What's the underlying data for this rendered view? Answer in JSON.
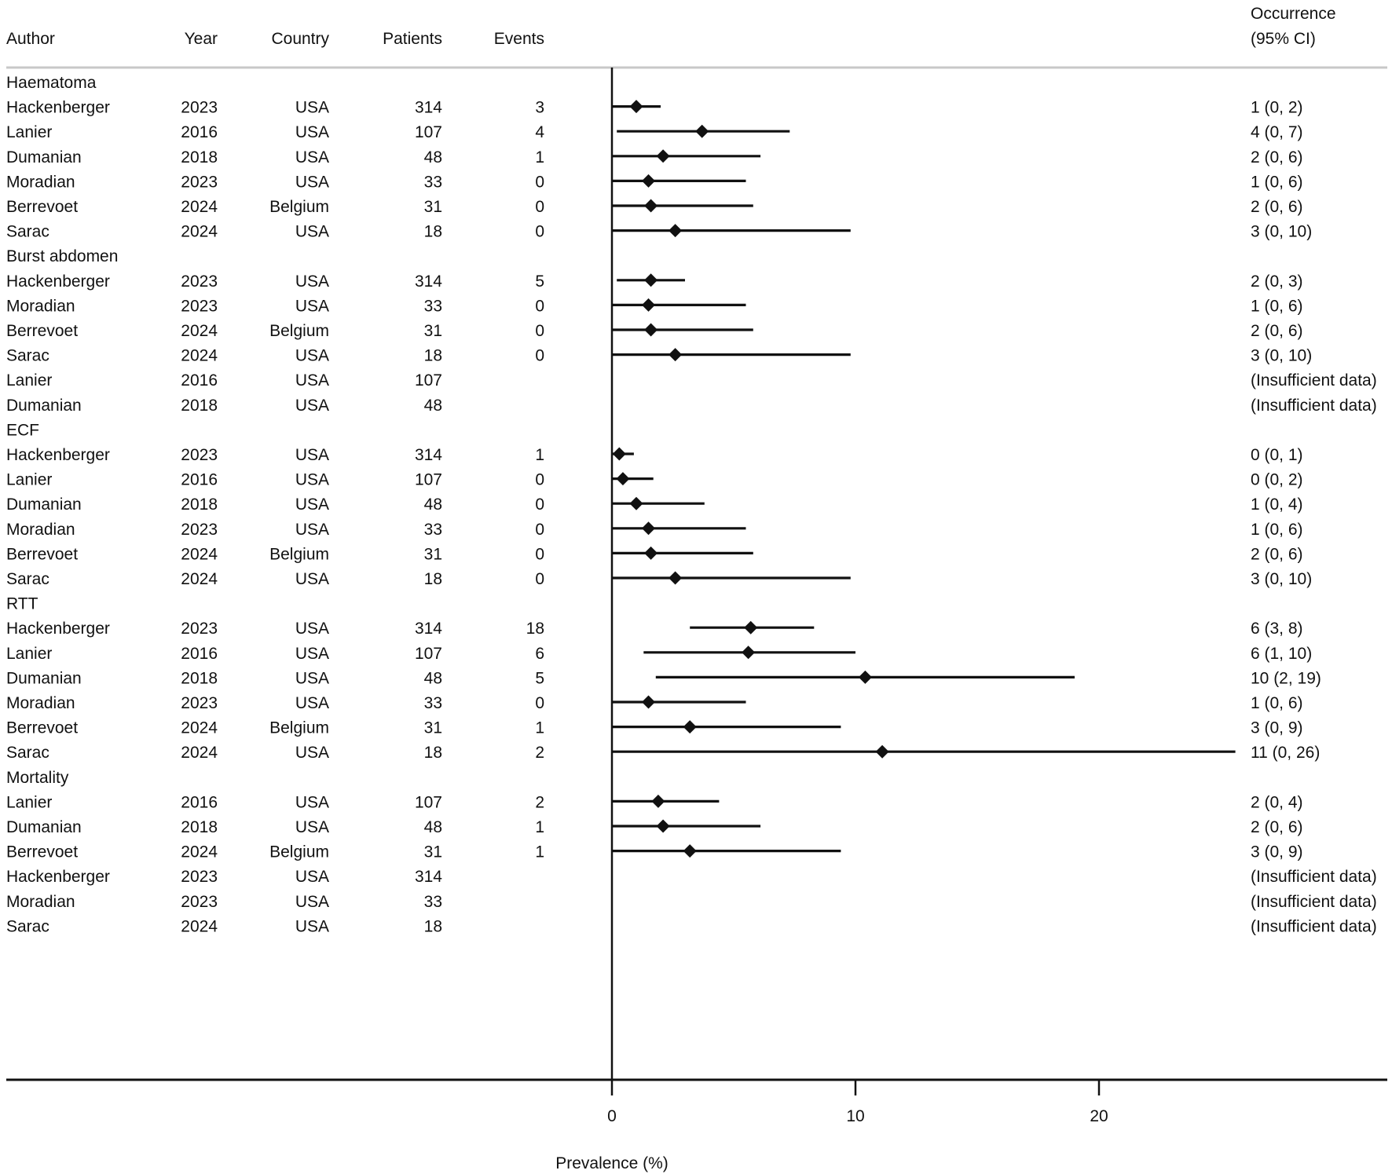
{
  "chart_data": {
    "type": "forest",
    "columns": {
      "author": "Author",
      "year": "Year",
      "country": "Country",
      "patients": "Patients",
      "events": "Events",
      "occurrence": [
        "Occurrence",
        "(95% CI)"
      ]
    },
    "xlabel": "Prevalence (%)",
    "xlim": [
      0,
      30
    ],
    "xticks": [
      0,
      10,
      20
    ],
    "groups": [
      {
        "title": "Haematoma",
        "rows": [
          {
            "author": "Hackenberger",
            "year": "2023",
            "country": "USA",
            "patients": "314",
            "events": "3",
            "est": 1.0,
            "lo": 0,
            "hi": 2.0,
            "label": "1 (0, 2)"
          },
          {
            "author": "Lanier",
            "year": "2016",
            "country": "USA",
            "patients": "107",
            "events": "4",
            "est": 3.7,
            "lo": 0.2,
            "hi": 7.3,
            "label": "4 (0, 7)"
          },
          {
            "author": "Dumanian",
            "year": "2018",
            "country": "USA",
            "patients": "48",
            "events": "1",
            "est": 2.1,
            "lo": 0,
            "hi": 6.1,
            "label": "2 (0, 6)"
          },
          {
            "author": "Moradian",
            "year": "2023",
            "country": "USA",
            "patients": "33",
            "events": "0",
            "est": 1.5,
            "lo": 0,
            "hi": 5.5,
            "label": "1 (0, 6)"
          },
          {
            "author": "Berrevoet",
            "year": "2024",
            "country": "Belgium",
            "patients": "31",
            "events": "0",
            "est": 1.6,
            "lo": 0,
            "hi": 5.8,
            "label": "2 (0, 6)"
          },
          {
            "author": "Sarac",
            "year": "2024",
            "country": "USA",
            "patients": "18",
            "events": "0",
            "est": 2.6,
            "lo": 0,
            "hi": 9.8,
            "label": "3 (0, 10)"
          }
        ]
      },
      {
        "title": "Burst abdomen",
        "rows": [
          {
            "author": "Hackenberger",
            "year": "2023",
            "country": "USA",
            "patients": "314",
            "events": "5",
            "est": 1.6,
            "lo": 0.2,
            "hi": 3.0,
            "label": "2 (0, 3)"
          },
          {
            "author": "Moradian",
            "year": "2023",
            "country": "USA",
            "patients": "33",
            "events": "0",
            "est": 1.5,
            "lo": 0,
            "hi": 5.5,
            "label": "1 (0, 6)"
          },
          {
            "author": "Berrevoet",
            "year": "2024",
            "country": "Belgium",
            "patients": "31",
            "events": "0",
            "est": 1.6,
            "lo": 0,
            "hi": 5.8,
            "label": "2 (0, 6)"
          },
          {
            "author": "Sarac",
            "year": "2024",
            "country": "USA",
            "patients": "18",
            "events": "0",
            "est": 2.6,
            "lo": 0,
            "hi": 9.8,
            "label": "3 (0, 10)"
          },
          {
            "author": "Lanier",
            "year": "2016",
            "country": "USA",
            "patients": "107",
            "events": "",
            "label": "(Insufficient data)"
          },
          {
            "author": "Dumanian",
            "year": "2018",
            "country": "USA",
            "patients": "48",
            "events": "",
            "label": "(Insufficient data)"
          }
        ]
      },
      {
        "title": "ECF",
        "rows": [
          {
            "author": "Hackenberger",
            "year": "2023",
            "country": "USA",
            "patients": "314",
            "events": "1",
            "est": 0.3,
            "lo": 0,
            "hi": 0.9,
            "label": "0 (0, 1)"
          },
          {
            "author": "Lanier",
            "year": "2016",
            "country": "USA",
            "patients": "107",
            "events": "0",
            "est": 0.45,
            "lo": 0,
            "hi": 1.7,
            "label": "0 (0, 2)"
          },
          {
            "author": "Dumanian",
            "year": "2018",
            "country": "USA",
            "patients": "48",
            "events": "0",
            "est": 1.0,
            "lo": 0,
            "hi": 3.8,
            "label": "1 (0, 4)"
          },
          {
            "author": "Moradian",
            "year": "2023",
            "country": "USA",
            "patients": "33",
            "events": "0",
            "est": 1.5,
            "lo": 0,
            "hi": 5.5,
            "label": "1 (0, 6)"
          },
          {
            "author": "Berrevoet",
            "year": "2024",
            "country": "Belgium",
            "patients": "31",
            "events": "0",
            "est": 1.6,
            "lo": 0,
            "hi": 5.8,
            "label": "2 (0, 6)"
          },
          {
            "author": "Sarac",
            "year": "2024",
            "country": "USA",
            "patients": "18",
            "events": "0",
            "est": 2.6,
            "lo": 0,
            "hi": 9.8,
            "label": "3 (0, 10)"
          }
        ]
      },
      {
        "title": "RTT",
        "rows": [
          {
            "author": "Hackenberger",
            "year": "2023",
            "country": "USA",
            "patients": "314",
            "events": "18",
            "est": 5.7,
            "lo": 3.2,
            "hi": 8.3,
            "label": "6 (3, 8)"
          },
          {
            "author": "Lanier",
            "year": "2016",
            "country": "USA",
            "patients": "107",
            "events": "6",
            "est": 5.6,
            "lo": 1.3,
            "hi": 10.0,
            "label": "6 (1, 10)"
          },
          {
            "author": "Dumanian",
            "year": "2018",
            "country": "USA",
            "patients": "48",
            "events": "5",
            "est": 10.4,
            "lo": 1.8,
            "hi": 19.0,
            "label": "10 (2, 19)"
          },
          {
            "author": "Moradian",
            "year": "2023",
            "country": "USA",
            "patients": "33",
            "events": "0",
            "est": 1.5,
            "lo": 0,
            "hi": 5.5,
            "label": "1 (0, 6)"
          },
          {
            "author": "Berrevoet",
            "year": "2024",
            "country": "Belgium",
            "patients": "31",
            "events": "1",
            "est": 3.2,
            "lo": 0,
            "hi": 9.4,
            "label": "3 (0, 9)"
          },
          {
            "author": "Sarac",
            "year": "2024",
            "country": "USA",
            "patients": "18",
            "events": "2",
            "est": 11.1,
            "lo": 0,
            "hi": 25.6,
            "label": "11 (0, 26)"
          }
        ]
      },
      {
        "title": "Mortality",
        "rows": [
          {
            "author": "Lanier",
            "year": "2016",
            "country": "USA",
            "patients": "107",
            "events": "2",
            "est": 1.9,
            "lo": 0,
            "hi": 4.4,
            "label": "2 (0, 4)"
          },
          {
            "author": "Dumanian",
            "year": "2018",
            "country": "USA",
            "patients": "48",
            "events": "1",
            "est": 2.1,
            "lo": 0,
            "hi": 6.1,
            "label": "2 (0, 6)"
          },
          {
            "author": "Berrevoet",
            "year": "2024",
            "country": "Belgium",
            "patients": "31",
            "events": "1",
            "est": 3.2,
            "lo": 0,
            "hi": 9.4,
            "label": "3 (0, 9)"
          },
          {
            "author": "Hackenberger",
            "year": "2023",
            "country": "USA",
            "patients": "314",
            "events": "",
            "label": "(Insufficient data)"
          },
          {
            "author": "Moradian",
            "year": "2023",
            "country": "USA",
            "patients": "33",
            "events": "",
            "label": "(Insufficient data)"
          },
          {
            "author": "Sarac",
            "year": "2024",
            "country": "USA",
            "patients": "18",
            "events": "",
            "label": "(Insufficient data)"
          }
        ]
      }
    ]
  }
}
